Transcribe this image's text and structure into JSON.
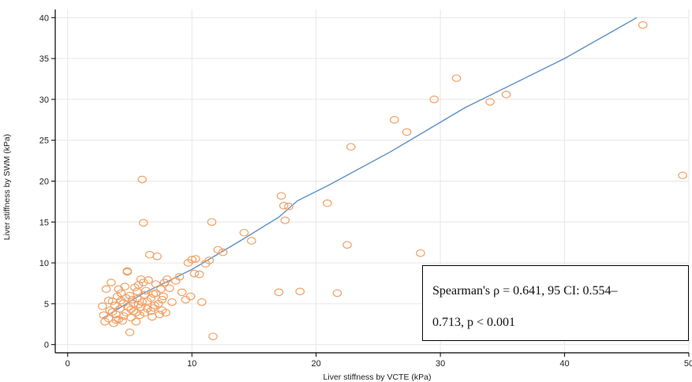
{
  "chart_data": {
    "type": "scatter",
    "xlabel": "Liver stiffness by VCTE (kPa)",
    "ylabel": "Liver stiffness by SWM (kPa)",
    "xlim": [
      -1,
      50
    ],
    "ylim": [
      -1,
      41
    ],
    "xticks": [
      0,
      10,
      20,
      30,
      40,
      50
    ],
    "yticks": [
      0,
      5,
      10,
      15,
      20,
      25,
      30,
      35,
      40
    ],
    "x_tick_labels": [
      "0",
      "10",
      "20",
      "30",
      "40",
      "50"
    ],
    "y_tick_labels": [
      "0",
      "5",
      "10",
      "15",
      "20",
      "25",
      "30",
      "35",
      "40"
    ],
    "grid": true,
    "marker_color": "#f0a064",
    "line_color": "#5b8fc9",
    "points": [
      [
        2.8,
        4.7
      ],
      [
        2.9,
        3.6
      ],
      [
        3.0,
        2.8
      ],
      [
        3.1,
        6.8
      ],
      [
        3.3,
        3.2
      ],
      [
        3.4,
        4.2
      ],
      [
        3.5,
        7.6
      ],
      [
        3.6,
        5.3
      ],
      [
        3.7,
        2.6
      ],
      [
        3.8,
        4.8
      ],
      [
        3.9,
        3.7
      ],
      [
        4.0,
        5.9
      ],
      [
        4.1,
        3.1
      ],
      [
        4.2,
        4.4
      ],
      [
        4.3,
        6.3
      ],
      [
        4.4,
        2.9
      ],
      [
        4.5,
        5.1
      ],
      [
        4.6,
        7.1
      ],
      [
        4.7,
        3.9
      ],
      [
        4.8,
        8.9
      ],
      [
        4.8,
        9.0
      ],
      [
        4.9,
        4.6
      ],
      [
        5.0,
        1.5
      ],
      [
        5.0,
        6.0
      ],
      [
        5.1,
        3.3
      ],
      [
        5.2,
        5.5
      ],
      [
        5.3,
        4.1
      ],
      [
        5.4,
        7.0
      ],
      [
        5.5,
        2.8
      ],
      [
        5.6,
        6.5
      ],
      [
        5.7,
        4.9
      ],
      [
        5.8,
        3.6
      ],
      [
        5.9,
        8.0
      ],
      [
        6.0,
        5.2
      ],
      [
        6.0,
        20.2
      ],
      [
        6.1,
        14.9
      ],
      [
        6.2,
        3.9
      ],
      [
        6.3,
        6.6
      ],
      [
        6.4,
        4.4
      ],
      [
        6.5,
        7.9
      ],
      [
        6.6,
        11.0
      ],
      [
        6.7,
        5.7
      ],
      [
        6.8,
        3.4
      ],
      [
        6.9,
        6.2
      ],
      [
        7.0,
        4.8
      ],
      [
        7.1,
        7.4
      ],
      [
        7.2,
        10.8
      ],
      [
        7.3,
        5.0
      ],
      [
        7.4,
        3.7
      ],
      [
        7.5,
        6.8
      ],
      [
        7.6,
        4.2
      ],
      [
        7.7,
        5.9
      ],
      [
        7.8,
        7.6
      ],
      [
        7.9,
        3.9
      ],
      [
        8.0,
        8.0
      ],
      [
        8.2,
        6.9
      ],
      [
        8.4,
        5.2
      ],
      [
        8.7,
        7.8
      ],
      [
        9.0,
        8.3
      ],
      [
        9.2,
        6.4
      ],
      [
        9.5,
        5.5
      ],
      [
        9.7,
        10.0
      ],
      [
        9.9,
        5.9
      ],
      [
        10.0,
        10.4
      ],
      [
        10.2,
        8.7
      ],
      [
        10.3,
        10.5
      ],
      [
        10.6,
        8.6
      ],
      [
        10.8,
        5.2
      ],
      [
        11.1,
        9.9
      ],
      [
        11.4,
        10.3
      ],
      [
        11.6,
        15.0
      ],
      [
        11.7,
        1.0
      ],
      [
        12.1,
        11.6
      ],
      [
        12.5,
        11.3
      ],
      [
        14.2,
        13.7
      ],
      [
        14.8,
        12.7
      ],
      [
        17.0,
        6.4
      ],
      [
        17.2,
        18.2
      ],
      [
        17.4,
        17.0
      ],
      [
        17.5,
        15.2
      ],
      [
        17.8,
        16.9
      ],
      [
        18.7,
        6.5
      ],
      [
        20.9,
        17.3
      ],
      [
        21.7,
        6.3
      ],
      [
        22.5,
        12.2
      ],
      [
        22.8,
        24.2
      ],
      [
        26.3,
        27.5
      ],
      [
        27.3,
        26.0
      ],
      [
        28.4,
        11.2
      ],
      [
        29.5,
        30.0
      ],
      [
        31.3,
        32.6
      ],
      [
        34.0,
        29.7
      ],
      [
        35.3,
        30.6
      ],
      [
        46.3,
        39.1
      ],
      [
        49.5,
        20.7
      ],
      [
        4.3,
        5.4
      ],
      [
        5.1,
        4.3
      ],
      [
        5.6,
        5.6
      ],
      [
        6.2,
        6.1
      ],
      [
        6.7,
        4.1
      ],
      [
        3.6,
        4.0
      ],
      [
        4.5,
        3.5
      ],
      [
        5.3,
        5.0
      ],
      [
        5.9,
        4.6
      ],
      [
        7.1,
        6.3
      ],
      [
        4.1,
        6.8
      ],
      [
        5.7,
        7.3
      ],
      [
        6.4,
        5.3
      ],
      [
        3.3,
        5.4
      ],
      [
        6.9,
        4.5
      ],
      [
        4.7,
        5.7
      ],
      [
        5.5,
        3.9
      ],
      [
        6.1,
        7.6
      ],
      [
        7.6,
        5.5
      ],
      [
        3.9,
        3.0
      ]
    ],
    "fit_line": [
      [
        2.8,
        3.2
      ],
      [
        6,
        6.2
      ],
      [
        10,
        9.2
      ],
      [
        14,
        12.8
      ],
      [
        17,
        15.6
      ],
      [
        18.5,
        17.6
      ],
      [
        21,
        19.5
      ],
      [
        26,
        23.6
      ],
      [
        32,
        29.0
      ],
      [
        40,
        35.0
      ],
      [
        45.8,
        40.0
      ]
    ],
    "annotation": {
      "line1": "Spearman's ρ = 0.641, 95 CI: 0.554–",
      "line2": "0.713, p < 0.001"
    }
  }
}
